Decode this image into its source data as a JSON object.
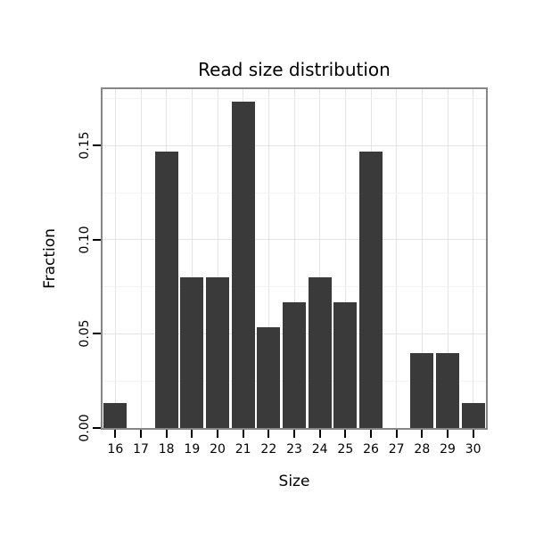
{
  "chart_data": {
    "type": "bar",
    "title": "Read size distribution",
    "xlabel": "Size",
    "ylabel": "Fraction",
    "categories": [
      "16",
      "17",
      "18",
      "19",
      "20",
      "21",
      "22",
      "23",
      "24",
      "25",
      "26",
      "27",
      "28",
      "29",
      "30"
    ],
    "values": [
      0.0133,
      0,
      0.1467,
      0.08,
      0.08,
      0.1733,
      0.0533,
      0.0667,
      0.08,
      0.0667,
      0.1467,
      0,
      0.04,
      0.04,
      0.0133
    ],
    "ylim": [
      0,
      0.18
    ],
    "yticks": [
      {
        "value": 0.0,
        "label": "0.00"
      },
      {
        "value": 0.05,
        "label": "0.05"
      },
      {
        "value": 0.1,
        "label": "0.10"
      },
      {
        "value": 0.15,
        "label": "0.15"
      }
    ],
    "grid": true,
    "legend": "none",
    "bar_color": "#3a3a3a",
    "panel_border_color": "#858585",
    "grid_major_color": "#e4e4e4",
    "grid_minor_color": "#f3f3f3",
    "tick_color": "#000000"
  }
}
